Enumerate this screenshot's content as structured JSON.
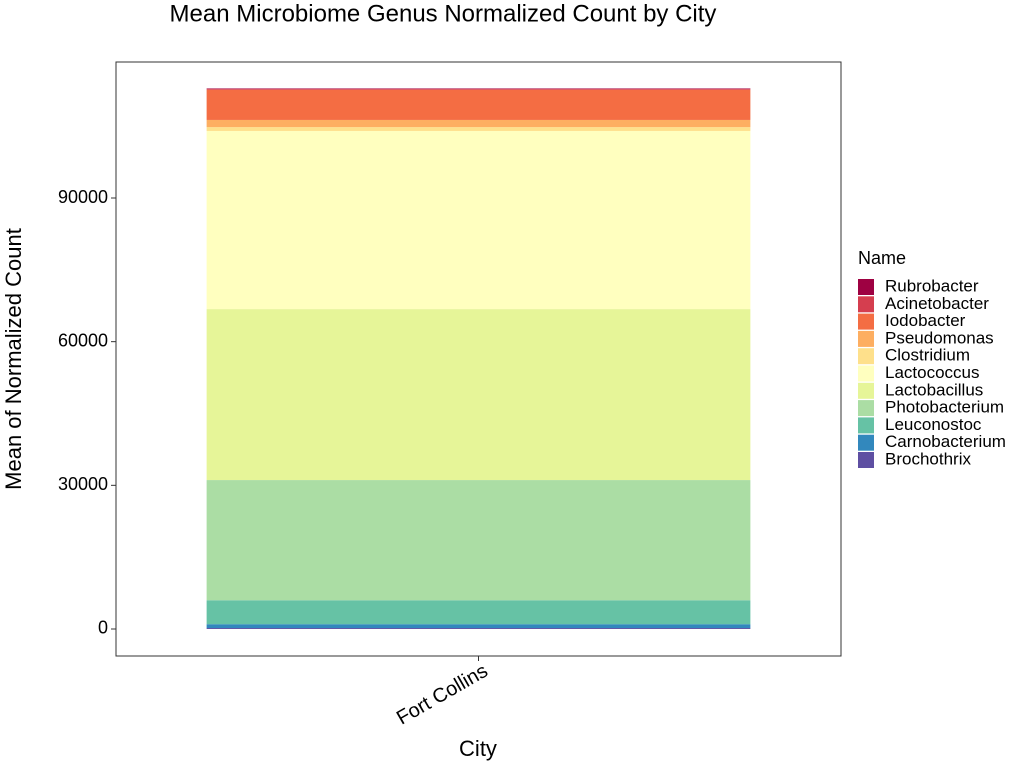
{
  "chart_data": {
    "type": "stacked_bar",
    "title": "Mean Microbiome Genus Normalized Count by City",
    "x_label": "City",
    "y_label": "Mean of Normalized Count",
    "legend_title": "Name",
    "legend_position": "right",
    "categories": [
      "Fort Collins"
    ],
    "series": [
      {
        "name": "Rubrobacter",
        "color": "#9E0142",
        "values": [
          100
        ]
      },
      {
        "name": "Acinetobacter",
        "color": "#D53E4F",
        "values": [
          200
        ]
      },
      {
        "name": "Iodobacter",
        "color": "#F46D43",
        "values": [
          6300
        ]
      },
      {
        "name": "Pseudomonas",
        "color": "#FDAE61",
        "values": [
          1500
        ]
      },
      {
        "name": "Clostridium",
        "color": "#FEE08B",
        "values": [
          800
        ]
      },
      {
        "name": "Lactococcus",
        "color": "#FFFFBF",
        "values": [
          37200
        ]
      },
      {
        "name": "Lactobacillus",
        "color": "#E6F598",
        "values": [
          35700
        ]
      },
      {
        "name": "Photobacterium",
        "color": "#ABDDA4",
        "values": [
          25100
        ]
      },
      {
        "name": "Leuconostoc",
        "color": "#66C2A5",
        "values": [
          5000
        ]
      },
      {
        "name": "Carnobacterium",
        "color": "#3288BD",
        "values": [
          800
        ]
      },
      {
        "name": "Brochothrix",
        "color": "#5E4FA2",
        "values": [
          200
        ]
      }
    ],
    "ylim": [
      -5640,
      118400
    ],
    "yticks": [
      0,
      30000,
      60000,
      90000
    ],
    "grid": false
  }
}
